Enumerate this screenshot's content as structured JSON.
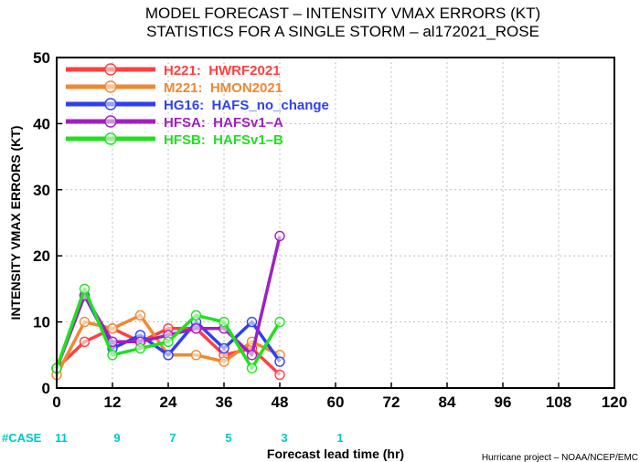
{
  "chart_data": {
    "type": "line",
    "title_line1": "MODEL FORECAST – INTENSITY VMAX ERRORS (KT)",
    "title_line2": "STATISTICS FOR A SINGLE STORM – al172021_ROSE",
    "xlabel": "Forecast lead time (hr)",
    "ylabel": "INTENSITY VMAX ERRORS (KT)",
    "xlim": [
      0,
      120
    ],
    "ylim": [
      0,
      50
    ],
    "x_ticks": [
      "0",
      "12",
      "24",
      "36",
      "48",
      "60",
      "72",
      "84",
      "96",
      "108",
      "120"
    ],
    "y_ticks": [
      "0",
      "10",
      "20",
      "30",
      "40",
      "50"
    ],
    "x_tick_values": [
      0,
      12,
      24,
      36,
      48,
      60,
      72,
      84,
      96,
      108,
      120
    ],
    "y_tick_values": [
      0,
      10,
      20,
      30,
      40,
      50
    ],
    "grid": true,
    "legend_position": "top-left",
    "x": [
      0,
      6,
      12,
      18,
      24,
      30,
      36,
      42,
      48
    ],
    "series": [
      {
        "name": "H221:  HWRF2021",
        "color": "#ff4040",
        "values": [
          3,
          7,
          9,
          7,
          9,
          9,
          5,
          6,
          2
        ]
      },
      {
        "name": "M221:  HMON2021",
        "color": "#f08830",
        "values": [
          2,
          10,
          9,
          11,
          5,
          5,
          4,
          7,
          5
        ]
      },
      {
        "name": "HG16:  HAFS_no_change",
        "color": "#3040f0",
        "values": [
          3,
          14,
          6,
          8,
          5,
          10,
          6,
          10,
          4
        ]
      },
      {
        "name": "HFSA:  HAFSv1–A",
        "color": "#a020c0",
        "values": [
          3,
          14,
          7,
          7,
          8,
          9,
          9,
          5,
          23
        ]
      },
      {
        "name": "HFSB:  HAFSv1–B",
        "color": "#20e020",
        "values": [
          3,
          15,
          5,
          6,
          7,
          11,
          10,
          3,
          10
        ]
      }
    ],
    "case_label": "#CASE",
    "cases": [
      {
        "x": 0,
        "count": "11"
      },
      {
        "x": 12,
        "count": "9"
      },
      {
        "x": 24,
        "count": "7"
      },
      {
        "x": 36,
        "count": "5"
      },
      {
        "x": 48,
        "count": "3"
      },
      {
        "x": 60,
        "count": "1"
      }
    ]
  },
  "credit": "Hurricane project – NOAA/NCEP/EMC"
}
